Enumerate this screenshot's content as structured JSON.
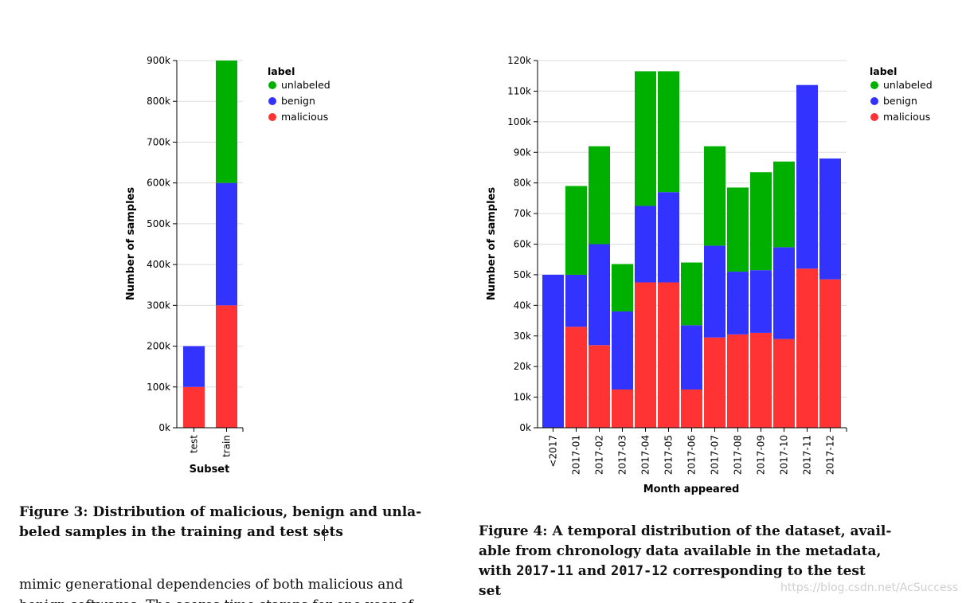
{
  "chart_data": [
    {
      "type": "bar",
      "stacked": true,
      "categories": [
        "test",
        "train"
      ],
      "series": [
        {
          "name": "malicious",
          "color": "#ff3333",
          "values": [
            100000,
            300000
          ]
        },
        {
          "name": "benign",
          "color": "#3333ff",
          "values": [
            100000,
            300000
          ]
        },
        {
          "name": "unlabeled",
          "color": "#00b000",
          "values": [
            0,
            300000
          ]
        }
      ],
      "title": "",
      "xlabel": "Subset",
      "ylabel": "Number of samples",
      "ylim": [
        0,
        900000
      ],
      "yticks": [
        0,
        100000,
        200000,
        300000,
        400000,
        500000,
        600000,
        700000,
        800000,
        900000
      ],
      "ytick_labels": [
        "0k",
        "100k",
        "200k",
        "300k",
        "400k",
        "500k",
        "600k",
        "700k",
        "800k",
        "900k"
      ],
      "grid": true,
      "legend": {
        "title": "label",
        "entries": [
          "unlabeled",
          "benign",
          "malicious"
        ],
        "position": "right"
      }
    },
    {
      "type": "bar",
      "stacked": true,
      "categories": [
        "<2017",
        "2017-01",
        "2017-02",
        "2017-03",
        "2017-04",
        "2017-05",
        "2017-06",
        "2017-07",
        "2017-08",
        "2017-09",
        "2017-10",
        "2017-11",
        "2017-12"
      ],
      "series": [
        {
          "name": "malicious",
          "color": "#ff3333",
          "values": [
            0,
            33000,
            27000,
            12500,
            47500,
            47500,
            12500,
            29500,
            30500,
            31000,
            29000,
            52000,
            48500
          ]
        },
        {
          "name": "benign",
          "color": "#3333ff",
          "values": [
            50000,
            17000,
            33000,
            25500,
            25000,
            29500,
            21000,
            30000,
            20500,
            20500,
            30000,
            60000,
            39500
          ]
        },
        {
          "name": "unlabeled",
          "color": "#00b000",
          "values": [
            0,
            29000,
            32000,
            15500,
            44000,
            39500,
            20500,
            32500,
            27500,
            32000,
            28000,
            0,
            0
          ]
        }
      ],
      "title": "",
      "xlabel": "Month appeared",
      "ylabel": "Number of samples",
      "ylim": [
        0,
        120000
      ],
      "yticks": [
        0,
        10000,
        20000,
        30000,
        40000,
        50000,
        60000,
        70000,
        80000,
        90000,
        100000,
        110000,
        120000
      ],
      "ytick_labels": [
        "0k",
        "10k",
        "20k",
        "30k",
        "40k",
        "50k",
        "60k",
        "70k",
        "80k",
        "90k",
        "100k",
        "110k",
        "120k"
      ],
      "grid": true,
      "legend": {
        "title": "label",
        "entries": [
          "unlabeled",
          "benign",
          "malicious"
        ],
        "position": "right"
      }
    }
  ],
  "captions": {
    "fig3_line1": "Figure 3: Distribution of malicious, benign and unla-",
    "fig3_line2": "beled samples in the training and test sets",
    "fig4_line1": "Figure 4: A temporal distribution of the dataset, avail-",
    "fig4_line2": "able from chronology data available in the metadata,",
    "fig4_line3_a": "with ",
    "fig4_line3_b": "2017-11",
    "fig4_line3_c": " and ",
    "fig4_line3_d": "2017-12",
    "fig4_line3_e": " corresponding to the test",
    "fig4_line4": "set"
  },
  "body": {
    "line1": "mimic generational dependencies of both malicious and",
    "line2": "benign softwares. The scores time stamps for one year of"
  },
  "watermark": "https://blog.csdn.net/AcSuccess"
}
